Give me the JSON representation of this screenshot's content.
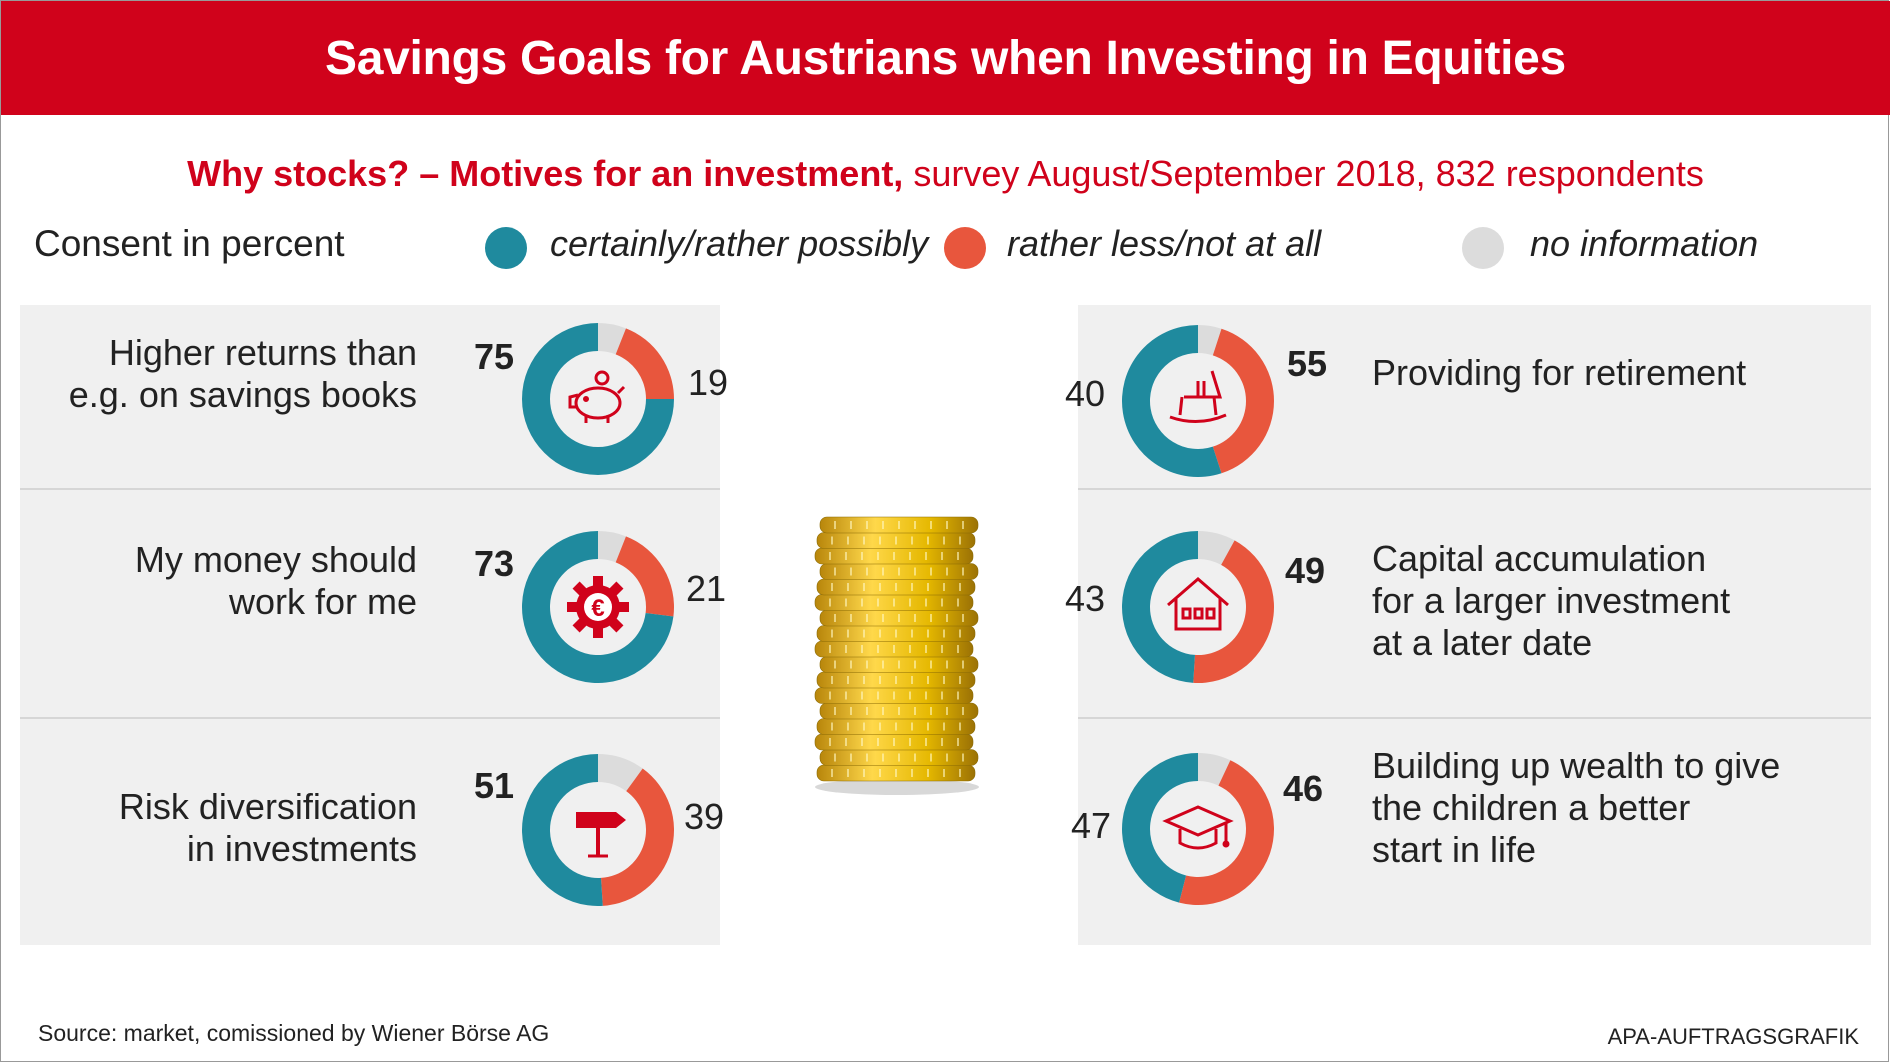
{
  "header": {
    "title": "Savings Goals for Austrians when Investing in Equities"
  },
  "subtitle": {
    "bold": "Why stocks? – Motives for an investment,",
    "rest": " survey August/September 2018, 832 respondents"
  },
  "consent_label": "Consent in percent",
  "legend": [
    {
      "label": "certainly/rather possibly",
      "color": "#1f8a9e"
    },
    {
      "label": "rather less/not at all",
      "color": "#e8563d"
    },
    {
      "label": "no information",
      "color": "#dcdcdc"
    }
  ],
  "colors": {
    "brand_red": "#d0021b",
    "teal": "#1f8a9e",
    "orange": "#e8563d",
    "grey": "#dcdcdc"
  },
  "chart_data": {
    "type": "donut",
    "series": [
      "certainly/rather possibly",
      "rather less/not at all",
      "no information"
    ],
    "items": [
      {
        "label": "Higher returns than e.g. on savings books",
        "line1": "Higher returns than",
        "line2": "e.g. on savings books",
        "line3": "",
        "yes": 75,
        "no": 19,
        "none": 6,
        "icon": "piggy-bank-icon"
      },
      {
        "label": "My money should work for me",
        "line1": "My money should",
        "line2": "work for me",
        "line3": "",
        "yes": 73,
        "no": 21,
        "none": 6,
        "icon": "euro-gear-icon"
      },
      {
        "label": "Risk diversification in investments",
        "line1": "Risk diversification",
        "line2": "in investments",
        "line3": "",
        "yes": 51,
        "no": 39,
        "none": 10,
        "icon": "signpost-icon"
      },
      {
        "label": "Providing for retirement",
        "line1": "Providing for retirement",
        "line2": "",
        "line3": "",
        "yes": 55,
        "no": 40,
        "none": 5,
        "icon": "rocking-chair-icon"
      },
      {
        "label": "Capital accumulation for a larger investment at a later date",
        "line1": "Capital accumulation",
        "line2": "for a larger investment",
        "line3": "at a later date",
        "yes": 49,
        "no": 43,
        "none": 8,
        "icon": "house-icon"
      },
      {
        "label": "Building up wealth to give the children a better start in life",
        "line1": "Building up wealth to give",
        "line2": "the children a better",
        "line3": "start in life",
        "yes": 46,
        "no": 47,
        "none": 7,
        "icon": "graduation-cap-icon"
      }
    ]
  },
  "footer": {
    "source": "Source: market, comissioned by Wiener Börse AG",
    "credit": "APA-AUFTRAGSGRAFIK"
  }
}
